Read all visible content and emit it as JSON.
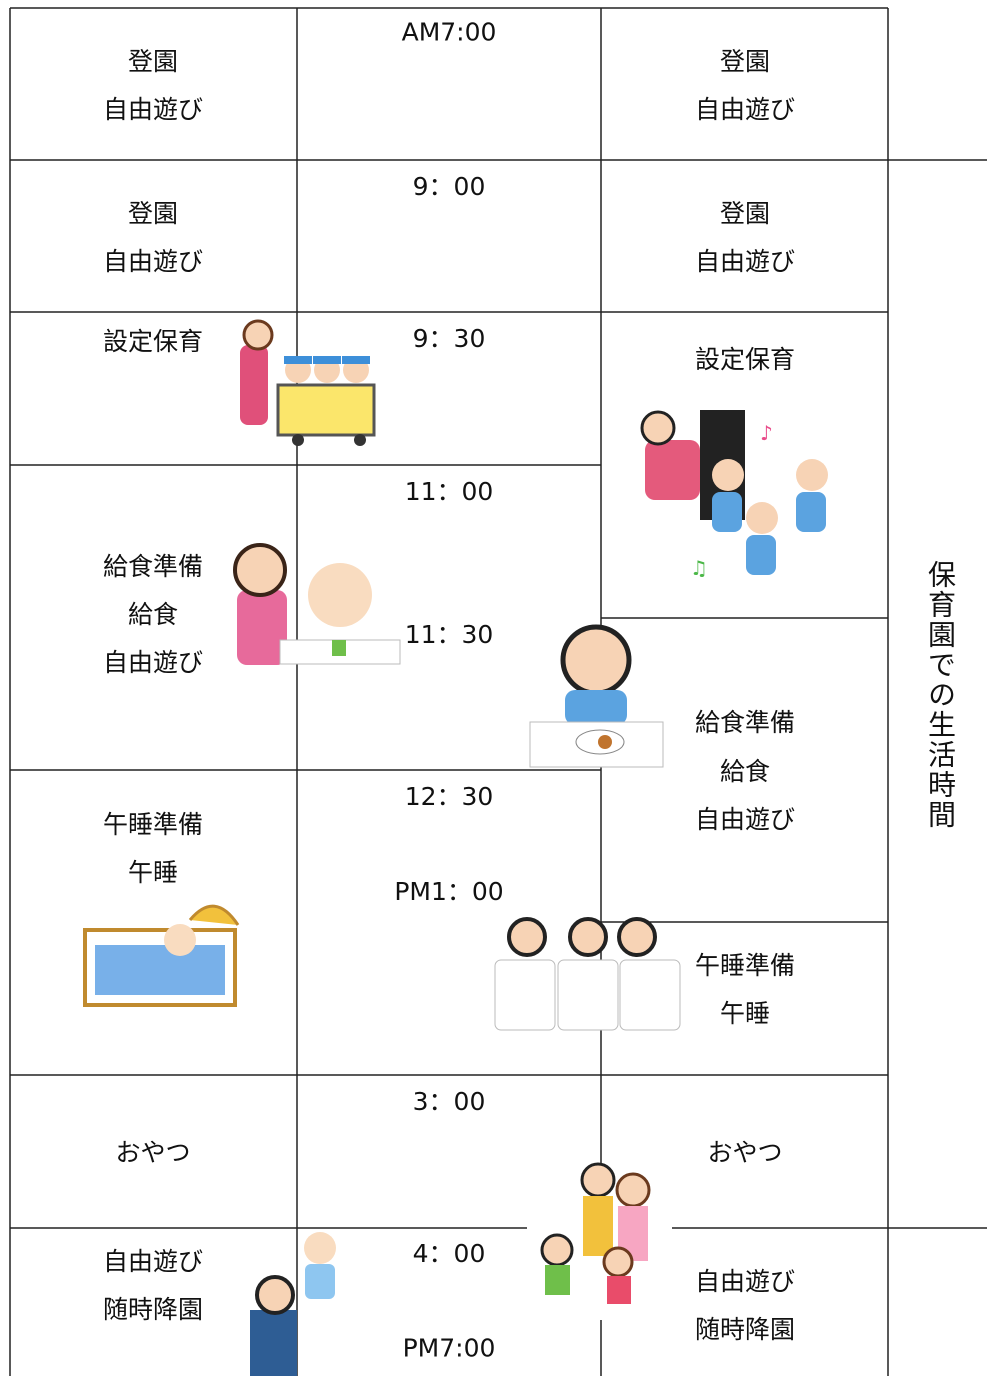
{
  "left": [
    [
      "登園",
      "自由遊び"
    ],
    [
      "登園",
      "自由遊び"
    ],
    [
      "設定保育"
    ],
    [
      "給食準備",
      "給食",
      "自由遊び"
    ],
    [
      "午睡準備",
      "午睡"
    ],
    [
      "おやつ"
    ],
    [
      "自由遊び",
      "随時降園"
    ]
  ],
  "times": [
    "AM7:00",
    "9：00",
    "9：30",
    "11：00",
    "11：30",
    "12：30",
    "PM1：00",
    "3：00",
    "4：00",
    "PM7:00"
  ],
  "right": [
    [
      "登園",
      "自由遊び"
    ],
    [
      "登園",
      "自由遊び"
    ],
    [
      "設定保育"
    ],
    [
      "給食準備",
      "給食",
      "自由遊び"
    ],
    [
      "午睡準備",
      "午睡"
    ],
    [
      "おやつ"
    ],
    [
      "自由遊び",
      "随時降園"
    ]
  ],
  "side_label": "保育園での生活時間"
}
